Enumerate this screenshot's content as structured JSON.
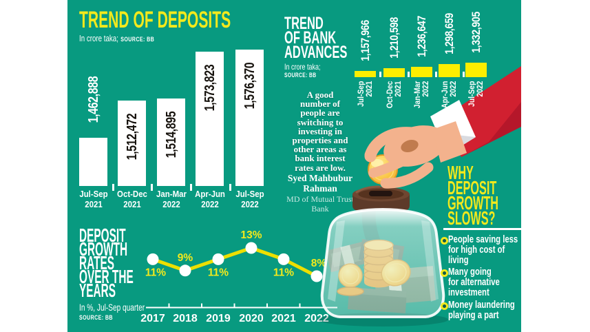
{
  "colors": {
    "panel_teal": "#089a80",
    "accent_yellow": "#f3e91c",
    "bar_yellow": "#fdee00",
    "bar_white": "#ffffff",
    "line_yellow": "#ecdf00",
    "sleeve_red": "#d12030",
    "text_white": "#ffffff",
    "text_black": "#17130e"
  },
  "deposits": {
    "title": "TREND OF DEPOSITS",
    "unit": "In crore taka;",
    "source": "SOURCE: BB"
  },
  "advances": {
    "title": "TREND\nOF BANK\nADVANCES",
    "unit": "In crore taka;",
    "source": "SOURCE: BB"
  },
  "quote": {
    "text": "A good\nnumber of\npeople are\nswitching to\ninvesting in\nproperties and\nother areas as\nbank interest\nrates are low.",
    "author": "Syed Mahbubur\nRahman",
    "author_role": "MD of Mutual Trust\nBank"
  },
  "why": {
    "heading": "WHY\nDEPOSIT\nGROWTH\nSLOWS?",
    "bullets": [
      "People saving less\nfor high cost of\nliving",
      "Many going\nfor alternative\ninvestment",
      "Money laundering\nplaying a part"
    ]
  },
  "growth": {
    "heading": "DEPOSIT\nGROWTH\nRATES\nOVER THE\nYEARS",
    "unit": "In %, Jul-Sep quarter",
    "source": "SOURCE: BB"
  },
  "chart_data": [
    {
      "id": "deposits",
      "type": "bar",
      "title": "TREND OF DEPOSITS",
      "ylabel": "In crore taka",
      "source": "BB",
      "categories": [
        "Jul-Sep\n2021",
        "Oct-Dec\n2021",
        "Jan-Mar\n2022",
        "Apr-Jun\n2022",
        "Jul-Sep\n2022"
      ],
      "values": [
        1462888,
        1512472,
        1514895,
        1573823,
        1576370
      ],
      "value_labels": [
        "1,462,888",
        "1,512,472",
        "1,514,895",
        "1,573,823",
        "1,576,370"
      ],
      "bar_color": "#ffffff",
      "legend": "none",
      "grid": false
    },
    {
      "id": "bank-advances",
      "type": "bar",
      "title": "TREND OF BANK ADVANCES",
      "ylabel": "In crore taka",
      "source": "BB",
      "categories": [
        "Jul-Sep\n2021",
        "Oct-Dec\n2021",
        "Jan-Mar\n2022",
        "Apr-Jun\n2022",
        "Jul-Sep\n2022"
      ],
      "values": [
        1157966,
        1210598,
        1236647,
        1298659,
        1332905
      ],
      "value_labels": [
        "1,157,966",
        "1,210,598",
        "1,236,647",
        "1,298,659",
        "1,332,905"
      ],
      "bar_color": "#fdee00",
      "legend": "none",
      "grid": false
    },
    {
      "id": "deposit-growth-rate",
      "type": "line",
      "title": "DEPOSIT GROWTH RATES OVER THE YEARS",
      "ylabel": "%, Jul-Sep quarter",
      "source": "BB",
      "categories": [
        "2017",
        "2018",
        "2019",
        "2020",
        "2021",
        "2022"
      ],
      "values": [
        11,
        9,
        11,
        13,
        11,
        8
      ],
      "value_labels": [
        "11%",
        "9%",
        "11%",
        "13%",
        "11%",
        "8%"
      ],
      "line_color": "#ecdf00",
      "marker_color": "#ffffff",
      "legend": "none",
      "grid": false
    }
  ]
}
